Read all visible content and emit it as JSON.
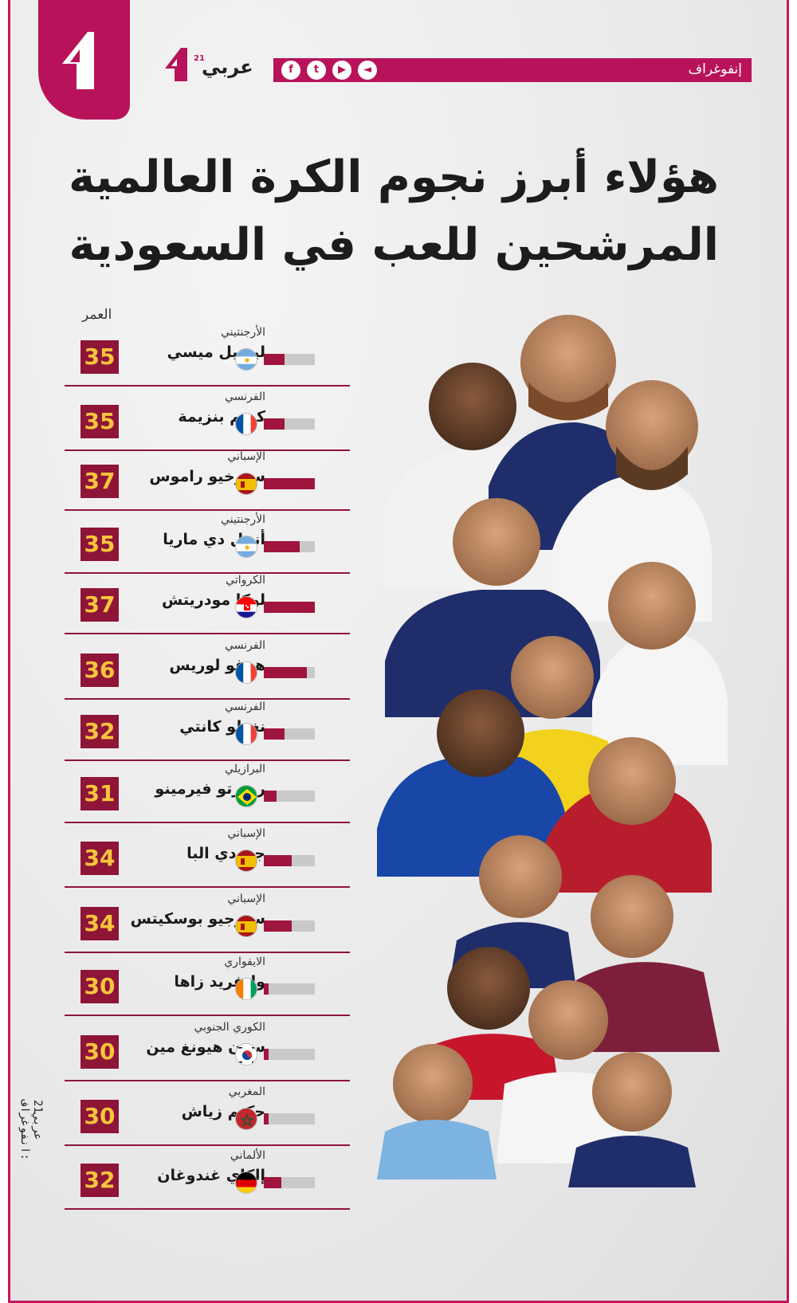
{
  "header": {
    "section_label": "إنفوغراف",
    "brand_name": "عربي",
    "brand_sup": "21",
    "social_icons": [
      "facebook-icon",
      "twitter-icon",
      "youtube-icon",
      "arabi21-icon"
    ]
  },
  "title": {
    "line1": "هؤلاء أبرز نجوم الكرة العالمية",
    "line2": "المرشحين للعب في السعودية"
  },
  "age_header": "العمر",
  "colors": {
    "accent": "#b8135a",
    "age_box": "#8e1538",
    "age_text": "#f7c53c",
    "bar_fill": "#a0153e",
    "bar_track": "#c9c9c9"
  },
  "players": [
    {
      "nationality": "الأرجنتيني",
      "name": "ليونيل ميسي",
      "age": "35",
      "flag": "argentina",
      "bar_fraction": 0.4
    },
    {
      "nationality": "الفرنسي",
      "name": "كريم بنزيمة",
      "age": "35",
      "flag": "france",
      "bar_fraction": 0.4
    },
    {
      "nationality": "الإسباني",
      "name": "سيرخيو راموس",
      "age": "37",
      "flag": "spain",
      "bar_fraction": 1.0
    },
    {
      "nationality": "الأرجنتيني",
      "name": "أنخل دي ماريا",
      "age": "35",
      "flag": "argentina",
      "bar_fraction": 0.7
    },
    {
      "nationality": "الكرواتي",
      "name": "لوكا مودريتش",
      "age": "37",
      "flag": "croatia",
      "bar_fraction": 1.0
    },
    {
      "nationality": "الفرنسي",
      "name": "هوغو لوريس",
      "age": "36",
      "flag": "france",
      "bar_fraction": 0.85
    },
    {
      "nationality": "الفرنسي",
      "name": "نغولو كانتي",
      "age": "32",
      "flag": "france",
      "bar_fraction": 0.4
    },
    {
      "nationality": "البرازيلي",
      "name": "روبرتو فيرمينو",
      "age": "31",
      "flag": "brazil",
      "bar_fraction": 0.25
    },
    {
      "nationality": "الإسباني",
      "name": "جوردي البا",
      "age": "34",
      "flag": "spain",
      "bar_fraction": 0.55
    },
    {
      "nationality": "الإسباني",
      "name": "سيرجيو بوسكيتس",
      "age": "34",
      "flag": "spain",
      "bar_fraction": 0.55
    },
    {
      "nationality": "الايفواري",
      "name": "وليفريد زاها",
      "age": "30",
      "flag": "ivory-coast",
      "bar_fraction": 0.1
    },
    {
      "nationality": "الكوري الجنوبي",
      "name": "سون هيونغ مين",
      "age": "30",
      "flag": "south-korea",
      "bar_fraction": 0.1
    },
    {
      "nationality": "المغربي",
      "name": "حكيم زياش",
      "age": "30",
      "flag": "morocco",
      "bar_fraction": 0.1
    },
    {
      "nationality": "الألماني",
      "name": "إلكاي غندوغان",
      "age": "32",
      "flag": "germany",
      "bar_fraction": 0.35
    }
  ],
  "side_credit": "عربي21 :انفوغراف"
}
